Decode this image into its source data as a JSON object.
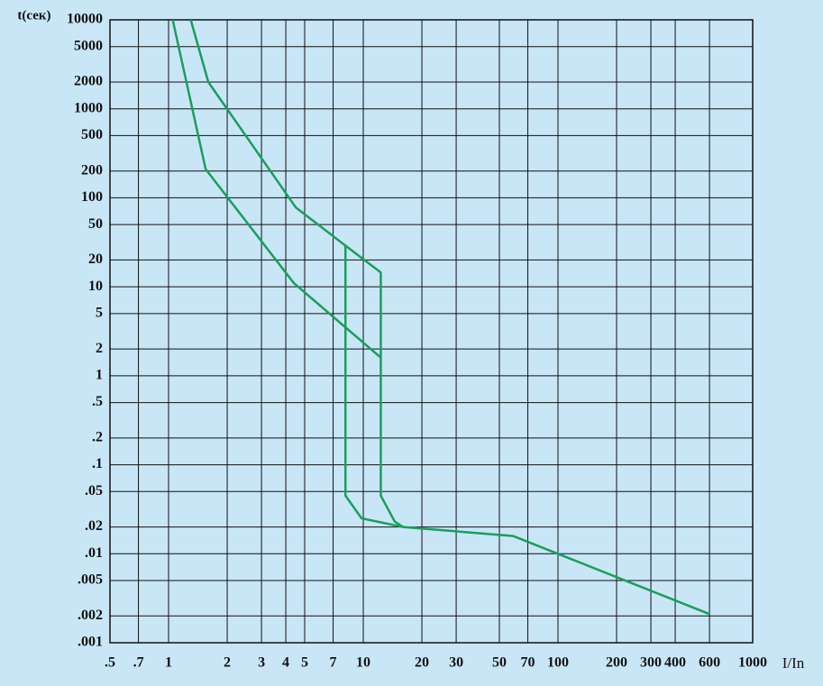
{
  "chart_data": {
    "type": "line",
    "x_label": "I/In",
    "y_label": "t(сек)",
    "log_x": true,
    "log_y": true,
    "grid": true,
    "xlim": [
      0.5,
      1000
    ],
    "ylim": [
      0.001,
      10000
    ],
    "xticks": [
      {
        "value": 0.5,
        "label": ".5"
      },
      {
        "value": 0.7,
        "label": ".7"
      },
      1,
      2,
      3,
      4,
      5,
      7,
      10,
      20,
      30,
      50,
      70,
      100,
      200,
      300,
      400,
      600,
      1000
    ],
    "yticks": [
      10000,
      5000,
      2000,
      1000,
      500,
      200,
      100,
      50,
      20,
      10,
      5,
      2,
      1,
      {
        "value": 0.5,
        "label": ".5"
      },
      {
        "value": 0.2,
        "label": ".2"
      },
      {
        "value": 0.1,
        "label": ".1"
      },
      {
        "value": 0.05,
        "label": ".05"
      },
      {
        "value": 0.02,
        "label": ".02"
      },
      {
        "value": 0.01,
        "label": ".01"
      },
      {
        "value": 0.005,
        "label": ".005"
      },
      {
        "value": 0.002,
        "label": ".002"
      },
      {
        "value": 0.001,
        "label": ".001"
      }
    ],
    "series": [
      {
        "color": "#1a9e5c",
        "x": [
          1.05,
          1.55,
          4.4,
          12.3
        ],
        "values": [
          10000,
          210,
          11,
          1.6
        ]
      },
      {
        "color": "#1a9e5c",
        "x": [
          1.3,
          1.6,
          4.5,
          8.1,
          12.3,
          12.3,
          14.5,
          16,
          59,
          600
        ],
        "values": [
          10000,
          2000,
          78,
          29,
          14.5,
          0.045,
          0.023,
          0.02,
          0.0158,
          0.0021
        ]
      },
      {
        "color": "#1a9e5c",
        "x": [
          8.1,
          8.1,
          9.8,
          16
        ],
        "values": [
          29,
          0.045,
          0.025,
          0.02
        ]
      }
    ]
  }
}
